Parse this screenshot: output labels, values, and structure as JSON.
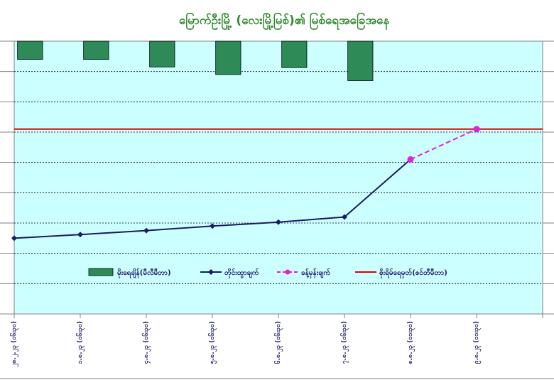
{
  "chart_data": {
    "type": "bar+line",
    "title": "မြောက်ဦးမြို့ (လေးမြို့မြစ်)၏ မြစ်ရေအခြေအနေ",
    "categories": [
      "၂၈.၂.၂၃ (၀၆း၃၀)",
      "၁.၈.၂၃ (၀၆း၃၀)",
      "၄.၈.၂၃ (၀၆း၃၀)",
      "၅.၈.၂၃ (၀၆း၃၀)",
      "၆.၈.၂၃ (၀၆း၃၀)",
      "၇.၈.၂၃ (၀၆း၃၀)",
      "၈.၈.၂၃ (၀၁း၃၀)",
      "၉.၈.၂၃ (၀၁း၃၀)"
    ],
    "y_primary_range": [
      0,
      9
    ],
    "y_secondary_range": [
      9,
      0
    ],
    "danger_level": 6.1,
    "series": [
      {
        "name": "မိုးရေချိန်(မီလီမီတာ)",
        "type": "bar",
        "axis": "secondary",
        "color": "#2e8b57",
        "values": [
          0.6,
          0.6,
          0.85,
          1.1,
          0.87,
          1.3,
          null,
          null
        ]
      },
      {
        "name": "တိုင်းထွာချက်",
        "type": "line",
        "axis": "primary",
        "color": "#1a1a66",
        "values": [
          2.5,
          2.62,
          2.75,
          2.9,
          3.03,
          3.2,
          5.1,
          null
        ]
      },
      {
        "name": "ခန့်မှန်းချက်",
        "type": "line-dashed",
        "axis": "primary",
        "color": "#e020e0",
        "values": [
          null,
          null,
          null,
          null,
          null,
          null,
          5.1,
          6.1
        ]
      },
      {
        "name": "စိုးရိမ်ရေမှတ်(စင်တီမီတာ)",
        "type": "hline",
        "axis": "primary",
        "color": "#e00000",
        "values": [
          6.1,
          6.1,
          6.1,
          6.1,
          6.1,
          6.1,
          6.1,
          6.1
        ]
      }
    ],
    "grid": true,
    "legend": "inside-lower-center"
  }
}
